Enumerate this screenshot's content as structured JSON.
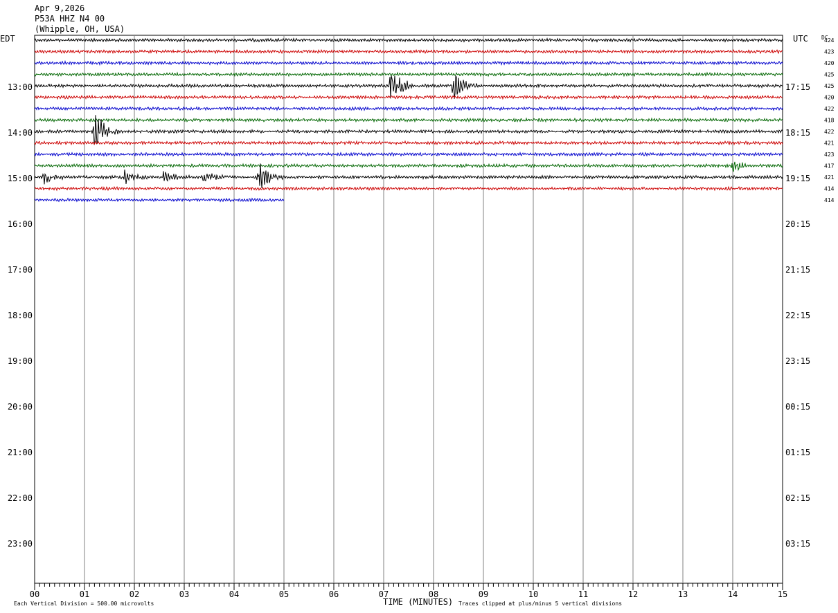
{
  "header": {
    "date": "Apr 9,2026",
    "station": "P53A HHZ N4 00",
    "location": "(Whipple, OH, USA)"
  },
  "left_axis_label": "EDT",
  "right_axis_label": "UTC",
  "dc_label": "DC",
  "footer": {
    "scale_note": "Each Vertical Division =  500.00 microvolts",
    "xlabel": "TIME (MINUTES)",
    "clip_note": "Traces clipped at plus/minus 5 vertical divisions"
  },
  "colors": {
    "trace_cycle": [
      "#000000",
      "#cc0000",
      "#0000cc",
      "#006600"
    ],
    "grid": "#808080"
  },
  "chart_data": {
    "type": "line",
    "title": "P53A HHZ N4 00",
    "xlabel": "TIME (MINUTES)",
    "xlim": [
      0,
      15
    ],
    "x_ticks": [
      "00",
      "01",
      "02",
      "03",
      "04",
      "05",
      "06",
      "07",
      "08",
      "09",
      "10",
      "11",
      "12",
      "13",
      "14",
      "15"
    ],
    "row_interval_minutes": 15,
    "hour_rows_edt": [
      "13:00",
      "14:00",
      "15:00",
      "16:00",
      "17:00",
      "18:00",
      "19:00",
      "20:00",
      "21:00",
      "22:00",
      "23:00"
    ],
    "hour_rows_utc": [
      "17:15",
      "18:15",
      "19:15",
      "20:15",
      "21:15",
      "22:15",
      "23:15",
      "00:15",
      "01:15",
      "02:15",
      "03:15"
    ],
    "traces": [
      {
        "dc": "424",
        "end_minute": 15,
        "events": []
      },
      {
        "dc": "423",
        "end_minute": 15,
        "events": []
      },
      {
        "dc": "420",
        "end_minute": 15,
        "events": []
      },
      {
        "dc": "425",
        "end_minute": 15,
        "events": []
      },
      {
        "dc": "425",
        "end_minute": 15,
        "events": [
          [
            7.15,
            5.0
          ],
          [
            8.4,
            3.0
          ]
        ]
      },
      {
        "dc": "420",
        "end_minute": 15,
        "events": []
      },
      {
        "dc": "422",
        "end_minute": 15,
        "events": []
      },
      {
        "dc": "418",
        "end_minute": 15,
        "events": []
      },
      {
        "dc": "422",
        "end_minute": 15,
        "events": [
          [
            1.2,
            4.5
          ]
        ]
      },
      {
        "dc": "421",
        "end_minute": 15,
        "events": []
      },
      {
        "dc": "423",
        "end_minute": 15,
        "events": []
      },
      {
        "dc": "417",
        "end_minute": 15,
        "events": [
          [
            14.0,
            1.2
          ]
        ]
      },
      {
        "dc": "421",
        "end_minute": 15,
        "events": [
          [
            0.2,
            1.0
          ],
          [
            1.8,
            1.3
          ],
          [
            2.6,
            1.0
          ],
          [
            3.4,
            1.0
          ],
          [
            4.5,
            3.0
          ]
        ]
      },
      {
        "dc": "414",
        "end_minute": 15,
        "events": []
      },
      {
        "dc": "414",
        "end_minute": 5,
        "events": []
      }
    ]
  }
}
